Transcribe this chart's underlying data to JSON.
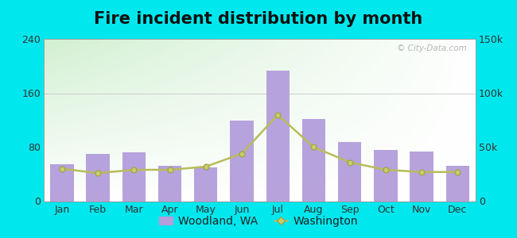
{
  "title": "Fire incident distribution by month",
  "months": [
    "Jan",
    "Feb",
    "Mar",
    "Apr",
    "May",
    "Jun",
    "Jul",
    "Aug",
    "Sep",
    "Oct",
    "Nov",
    "Dec"
  ],
  "woodland_bars": [
    55,
    70,
    72,
    52,
    50,
    120,
    193,
    122,
    88,
    76,
    74,
    52
  ],
  "washington_line": [
    30000,
    26000,
    29000,
    29000,
    32000,
    44000,
    80000,
    50000,
    36000,
    29000,
    27000,
    27000
  ],
  "bar_color": "#b39ddb",
  "bar_edge_color": "#9c8cc7",
  "line_color": "#b8bc5a",
  "line_marker": "o",
  "marker_face_color": "#c8cc6a",
  "marker_edge_color": "#a0a040",
  "left_ylim": [
    0,
    240
  ],
  "left_yticks": [
    0,
    80,
    160,
    240
  ],
  "right_ylim": [
    0,
    150000
  ],
  "right_yticks": [
    0,
    50000,
    100000,
    150000
  ],
  "right_yticklabels": [
    "0",
    "50k",
    "100k",
    "150k"
  ],
  "outer_bg": "#00e8ee",
  "plot_bg_colors": [
    "#c8e8c0",
    "#e8f8e0",
    "#f0faee",
    "#f8fff8"
  ],
  "title_fontsize": 15,
  "tick_fontsize": 9,
  "legend_fontsize": 10,
  "watermark": "© City-Data.com"
}
